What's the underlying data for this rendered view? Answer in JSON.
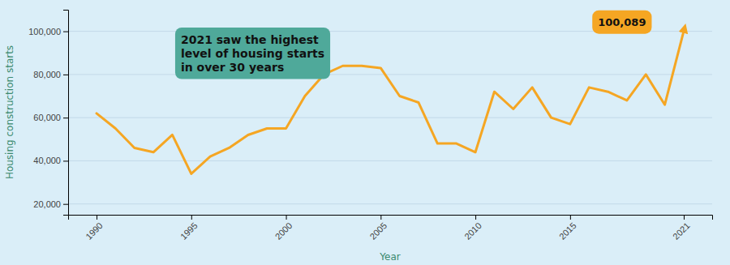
{
  "chart_data": {
    "type": "line",
    "x": [
      1990,
      1991,
      1992,
      1993,
      1994,
      1995,
      1996,
      1997,
      1998,
      1999,
      2000,
      2001,
      2002,
      2003,
      2004,
      2005,
      2006,
      2007,
      2008,
      2009,
      2010,
      2011,
      2012,
      2013,
      2014,
      2015,
      2016,
      2017,
      2018,
      2019,
      2020,
      2021
    ],
    "values": [
      62000,
      55000,
      46000,
      44000,
      52000,
      34000,
      42000,
      46000,
      52000,
      55000,
      55000,
      70000,
      80000,
      84000,
      84000,
      83000,
      70000,
      67000,
      48000,
      48000,
      44000,
      72000,
      64000,
      74000,
      60000,
      57000,
      74000,
      72000,
      68000,
      80000,
      66000,
      100089
    ],
    "color": "#F5A623",
    "xlabel": "Year",
    "ylabel": "Housing construction starts",
    "xlim": [
      1988.5,
      2022.5
    ],
    "xticks": [
      1990,
      1995,
      2000,
      2005,
      2010,
      2015,
      2021
    ],
    "ylim": [
      15000,
      110000
    ],
    "yticks": [
      {
        "value": 20000,
        "label": "20,000"
      },
      {
        "value": 40000,
        "label": "40,000"
      },
      {
        "value": 60000,
        "label": "60,000"
      },
      {
        "value": 80000,
        "label": "80,000"
      },
      {
        "value": 100000,
        "label": "100,000"
      }
    ],
    "grid": true,
    "annotations": [
      {
        "text": "2021 saw the highest\nlevel of housing starts\nin over 30 years",
        "color": "#4fa99a"
      },
      {
        "text": "100,089",
        "color": "#F5A623"
      }
    ]
  }
}
